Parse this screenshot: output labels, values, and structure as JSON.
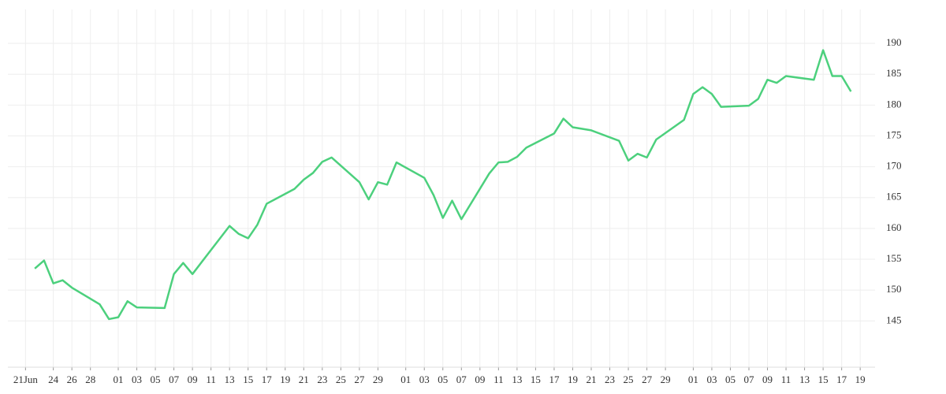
{
  "chart_data": {
    "type": "line",
    "x": [
      1,
      2,
      3,
      4,
      5,
      8,
      9,
      10,
      11,
      12,
      15,
      16,
      17,
      18,
      22,
      23,
      24,
      25,
      26,
      29,
      30,
      31,
      32,
      33,
      36,
      37,
      38,
      39,
      40,
      43,
      44,
      45,
      46,
      47,
      50,
      51,
      52,
      53,
      54,
      57,
      58,
      59,
      61,
      64,
      65,
      66,
      67,
      68,
      71,
      72,
      73,
      74,
      75,
      78,
      79,
      80,
      81,
      82,
      85,
      86,
      87,
      88,
      89
    ],
    "series": [
      {
        "color": "#4cd07d",
        "values": [
          153.5,
          154.8,
          151.1,
          151.6,
          150.4,
          147.7,
          145.3,
          145.6,
          148.2,
          147.2,
          147.1,
          152.6,
          154.4,
          152.6,
          160.4,
          159.1,
          158.4,
          160.6,
          164.0,
          166.4,
          167.9,
          169.0,
          170.8,
          171.5,
          167.5,
          164.7,
          167.5,
          167.1,
          170.7,
          168.2,
          165.4,
          161.7,
          164.5,
          161.5,
          168.9,
          170.7,
          170.8,
          171.6,
          173.1,
          175.4,
          177.8,
          176.4,
          175.9,
          174.2,
          171.0,
          172.1,
          171.5,
          174.4,
          177.6,
          181.8,
          182.9,
          181.8,
          179.7,
          179.9,
          181.0,
          184.1,
          183.6,
          184.7,
          184.1,
          188.9,
          184.7,
          184.7,
          182.2
        ]
      }
    ],
    "xlim": [
      -1.9,
      91.6
    ],
    "xticks": [
      {
        "value": 0,
        "label": "21Jun"
      },
      {
        "value": 3,
        "label": "24"
      },
      {
        "value": 5,
        "label": "26"
      },
      {
        "value": 7,
        "label": "28"
      },
      {
        "value": 10,
        "label": "01"
      },
      {
        "value": 12,
        "label": "03"
      },
      {
        "value": 14,
        "label": "05"
      },
      {
        "value": 16,
        "label": "07"
      },
      {
        "value": 18,
        "label": "09"
      },
      {
        "value": 20,
        "label": "11"
      },
      {
        "value": 22,
        "label": "13"
      },
      {
        "value": 24,
        "label": "15"
      },
      {
        "value": 26,
        "label": "17"
      },
      {
        "value": 28,
        "label": "19"
      },
      {
        "value": 30,
        "label": "21"
      },
      {
        "value": 32,
        "label": "23"
      },
      {
        "value": 34,
        "label": "25"
      },
      {
        "value": 36,
        "label": "27"
      },
      {
        "value": 38,
        "label": "29"
      },
      {
        "value": 41,
        "label": "01"
      },
      {
        "value": 43,
        "label": "03"
      },
      {
        "value": 45,
        "label": "05"
      },
      {
        "value": 47,
        "label": "07"
      },
      {
        "value": 49,
        "label": "09"
      },
      {
        "value": 51,
        "label": "11"
      },
      {
        "value": 53,
        "label": "13"
      },
      {
        "value": 55,
        "label": "15"
      },
      {
        "value": 57,
        "label": "17"
      },
      {
        "value": 59,
        "label": "19"
      },
      {
        "value": 61,
        "label": "21"
      },
      {
        "value": 63,
        "label": "23"
      },
      {
        "value": 65,
        "label": "25"
      },
      {
        "value": 67,
        "label": "27"
      },
      {
        "value": 69,
        "label": "29"
      },
      {
        "value": 72,
        "label": "01"
      },
      {
        "value": 74,
        "label": "03"
      },
      {
        "value": 76,
        "label": "05"
      },
      {
        "value": 78,
        "label": "07"
      },
      {
        "value": 80,
        "label": "09"
      },
      {
        "value": 82,
        "label": "11"
      },
      {
        "value": 84,
        "label": "13"
      },
      {
        "value": 86,
        "label": "15"
      },
      {
        "value": 88,
        "label": "17"
      },
      {
        "value": 90,
        "label": "19"
      }
    ],
    "ylim": [
      137.5,
      195.5
    ],
    "yticks": [
      145,
      150,
      155,
      160,
      165,
      170,
      175,
      180,
      185,
      190
    ],
    "grid": true
  }
}
